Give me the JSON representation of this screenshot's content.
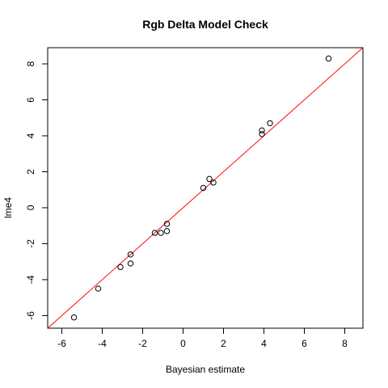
{
  "chart_data": {
    "type": "scatter",
    "title": "Rgb Delta Model Check",
    "xlabel": "Bayesian estimate",
    "ylabel": "lme4",
    "xlim": [
      -6.7,
      8.9
    ],
    "ylim": [
      -6.7,
      8.9
    ],
    "x_ticks": [
      -6,
      -4,
      -2,
      0,
      2,
      4,
      6,
      8
    ],
    "y_ticks": [
      -6,
      -4,
      -2,
      0,
      2,
      4,
      6,
      8
    ],
    "x_tick_labels": [
      "-6",
      "-4",
      "-2",
      "0",
      "2",
      "4",
      "6",
      "8"
    ],
    "y_tick_labels": [
      "-6",
      "-4",
      "-2",
      "0",
      "2",
      "4",
      "6",
      "8"
    ],
    "grid": false,
    "points": [
      {
        "x": -5.4,
        "y": -6.1
      },
      {
        "x": -4.2,
        "y": -4.5
      },
      {
        "x": -3.1,
        "y": -3.3
      },
      {
        "x": -2.6,
        "y": -2.6
      },
      {
        "x": -2.6,
        "y": -3.1
      },
      {
        "x": -1.4,
        "y": -1.4
      },
      {
        "x": -1.1,
        "y": -1.4
      },
      {
        "x": -0.8,
        "y": -1.3
      },
      {
        "x": -0.8,
        "y": -0.9
      },
      {
        "x": 1.0,
        "y": 1.1
      },
      {
        "x": 1.3,
        "y": 1.6
      },
      {
        "x": 1.5,
        "y": 1.4
      },
      {
        "x": 3.9,
        "y": 4.3
      },
      {
        "x": 3.9,
        "y": 4.1
      },
      {
        "x": 4.3,
        "y": 4.7
      },
      {
        "x": 7.2,
        "y": 8.3
      }
    ],
    "reference_line": {
      "intercept": 0,
      "slope": 1,
      "color": "#ff0000"
    },
    "point_color": "#000000"
  }
}
